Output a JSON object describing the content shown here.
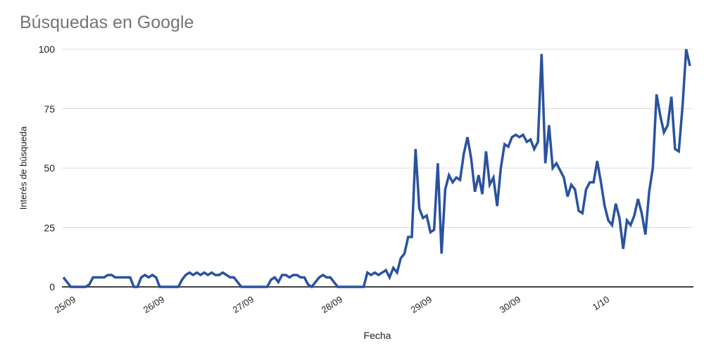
{
  "chart_data": {
    "type": "line",
    "title": "Búsquedas en Google",
    "xlabel": "Fecha",
    "ylabel": "Interés de búsqueda",
    "x_tick_labels": [
      "25/09",
      "26/09",
      "27/09",
      "28/09",
      "29/09",
      "30/09",
      "1/10"
    ],
    "y_tick_labels": [
      "0",
      "25",
      "50",
      "75",
      "100"
    ],
    "y_tick_values": [
      0,
      25,
      50,
      75,
      100
    ],
    "ylim": [
      0,
      100
    ],
    "points_per_day": 24,
    "grid": "horizontal-only",
    "legend": "none",
    "colors": {
      "line": "#2a529e",
      "axis": "#424242",
      "gridline": "#dcdcdc",
      "title_text": "#757575",
      "tick_text": "#1f1f1f"
    },
    "series": [
      {
        "name": "Interés de búsqueda",
        "resolution": "hourly",
        "values": [
          4,
          2,
          0,
          0,
          0,
          0,
          0,
          1,
          4,
          4,
          4,
          4,
          5,
          5,
          4,
          4,
          4,
          4,
          4,
          0,
          0,
          4,
          5,
          4,
          5,
          4,
          0,
          0,
          0,
          0,
          0,
          0,
          3,
          5,
          6,
          5,
          6,
          5,
          6,
          5,
          6,
          5,
          5,
          6,
          5,
          4,
          4,
          2,
          0,
          0,
          0,
          0,
          0,
          0,
          0,
          0,
          3,
          4,
          2,
          5,
          5,
          4,
          5,
          5,
          4,
          4,
          1,
          0,
          2,
          4,
          5,
          4,
          4,
          2,
          0,
          0,
          0,
          0,
          0,
          0,
          0,
          0,
          6,
          5,
          6,
          5,
          6,
          7,
          4,
          8,
          6,
          12,
          14,
          21,
          21,
          58,
          33,
          29,
          30,
          23,
          24,
          52,
          14,
          41,
          47,
          44,
          46,
          45,
          56,
          63,
          54,
          40,
          47,
          39,
          57,
          43,
          46,
          34,
          50,
          60,
          59,
          63,
          64,
          63,
          64,
          61,
          62,
          58,
          61,
          98,
          52,
          68,
          50,
          52,
          49,
          46,
          38,
          43,
          41,
          32,
          31,
          41,
          44,
          44,
          53,
          44,
          34,
          28,
          26,
          35,
          29,
          16,
          28,
          26,
          30,
          37,
          31,
          22,
          40,
          50,
          81,
          72,
          65,
          68,
          80,
          58,
          57,
          76,
          100,
          93
        ]
      }
    ]
  }
}
